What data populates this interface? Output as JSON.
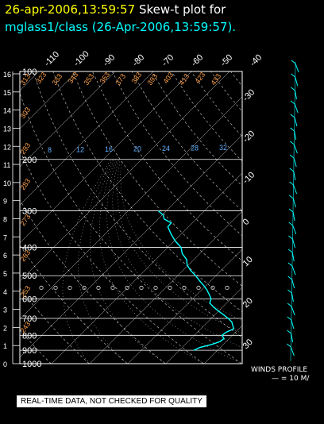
{
  "header": {
    "date_text": "26-apr-2006,13:59:57",
    "title_text": "Skew-t plot for",
    "subtitle": "mglass1/class (26-Apr-2006,13:59:57)."
  },
  "footer": {
    "disclaimer": "REAL-TIME DATA, NOT CHECKED FOR QUALITY",
    "winds_label": "WINDS PROFILE",
    "winds_scale": "— = 10 M/"
  },
  "colors": {
    "background": "#000000",
    "title_date": "#ffff00",
    "title": "#ffffff",
    "subtitle": "#00ffff",
    "sounding": "#00ffff",
    "isobar": "#ffffff",
    "isotherm": "#ffffff",
    "dry_adiabat_label": "#ffa04a",
    "mixing_ratio_label": "#5fb0ff",
    "winds": "#00ffff"
  },
  "chart_data": {
    "type": "line",
    "x_axis": "temperature (C), skewed",
    "y_axis": "pressure (hPa)",
    "ylim": [
      1000,
      100
    ],
    "grid": true,
    "left_axis_ticks": [
      "16",
      "15",
      "14",
      "13",
      "12",
      "11",
      "10",
      "9",
      "8",
      "7",
      "6",
      "5",
      "4",
      "3",
      "2",
      "1",
      "0"
    ],
    "isobars": [
      "100",
      "200",
      "300",
      "400",
      "500",
      "600",
      "700",
      "800",
      "900",
      "1000"
    ],
    "top_temperature_labels": [
      "-110",
      "-100",
      "-90",
      "-80",
      "-70",
      "-60",
      "-50",
      "-40"
    ],
    "right_temperature_labels": [
      "-30",
      "-20",
      "-10",
      "0",
      "10",
      "20",
      "30"
    ],
    "dry_adiabat_labels": [
      "313",
      "323",
      "333",
      "343",
      "353",
      "363",
      "373",
      "383",
      "393",
      "403",
      "413",
      "423",
      "433",
      "303",
      "293",
      "283",
      "273",
      "263",
      "253",
      "243"
    ],
    "mixing_ratio_labels": [
      "8",
      "12",
      "16",
      "20",
      "24",
      "28",
      "32"
    ],
    "series": [
      {
        "name": "temperature",
        "points": [
          [
            900,
            -6
          ],
          [
            880,
            -5.5
          ],
          [
            860,
            -3.5
          ],
          [
            840,
            -2
          ],
          [
            820,
            -1.5
          ],
          [
            800,
            -2.5
          ],
          [
            780,
            -2
          ],
          [
            760,
            -1
          ],
          [
            740,
            -2.5
          ],
          [
            720,
            -4
          ],
          [
            700,
            -6
          ],
          [
            680,
            -8
          ],
          [
            660,
            -10
          ],
          [
            640,
            -12
          ],
          [
            620,
            -14
          ],
          [
            600,
            -15
          ],
          [
            580,
            -17
          ],
          [
            560,
            -19
          ],
          [
            540,
            -21
          ],
          [
            520,
            -23
          ],
          [
            500,
            -25
          ],
          [
            480,
            -27.5
          ],
          [
            460,
            -30
          ],
          [
            440,
            -32
          ],
          [
            420,
            -35
          ],
          [
            400,
            -37
          ],
          [
            380,
            -40
          ],
          [
            360,
            -42.5
          ],
          [
            340,
            -45
          ],
          [
            330,
            -46
          ],
          [
            320,
            -48
          ],
          [
            310,
            -50
          ],
          [
            300,
            -52
          ]
        ]
      }
    ]
  }
}
